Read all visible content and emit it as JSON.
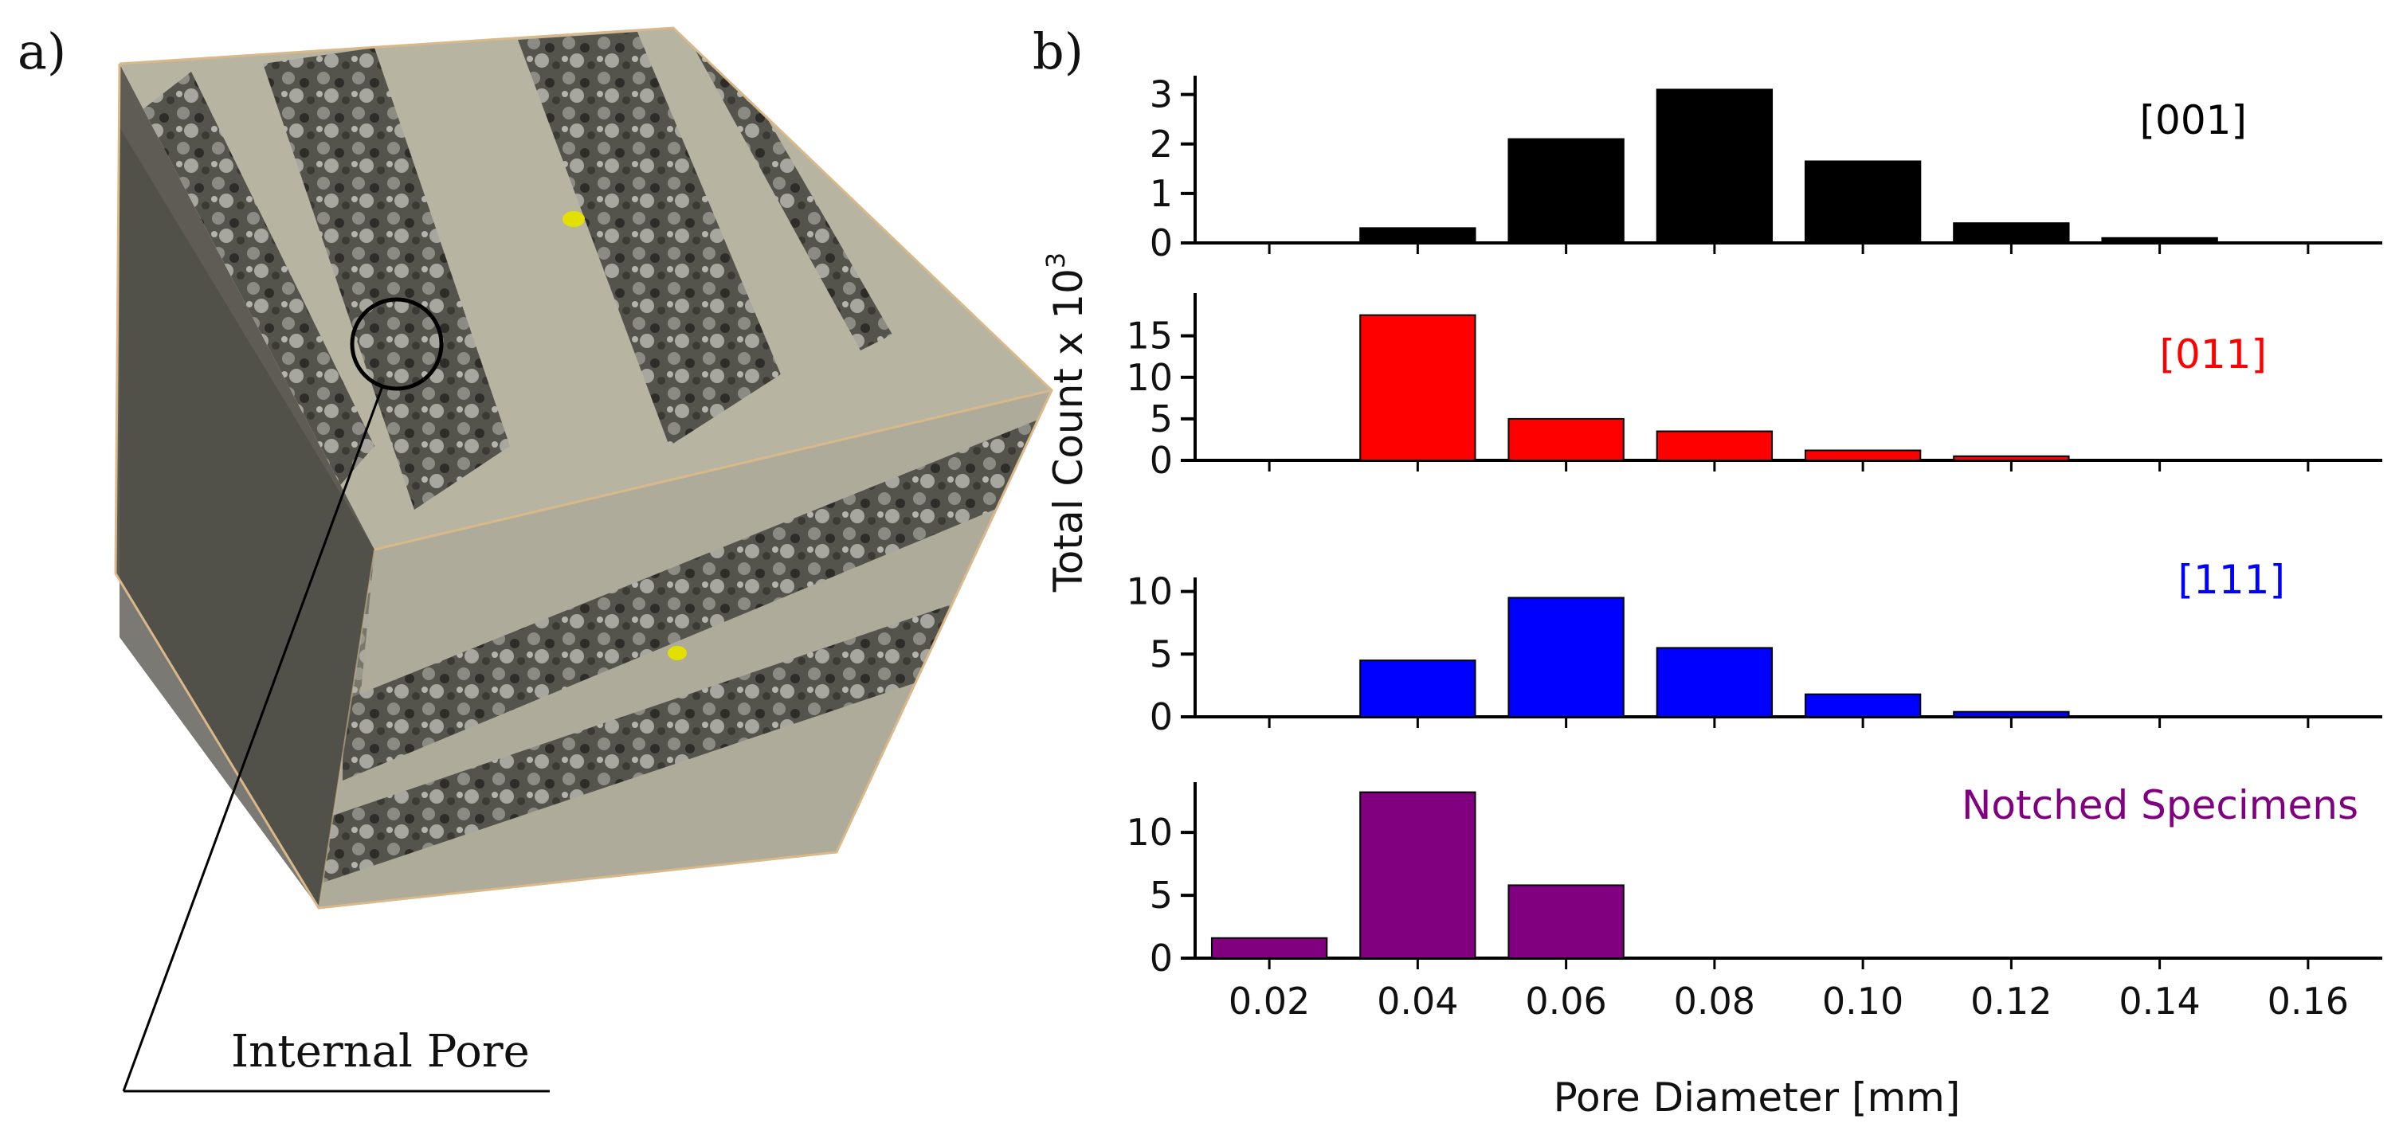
{
  "panels": {
    "a_label": "a)",
    "b_label": "b)"
  },
  "image_panel": {
    "annotation": "Internal Pore"
  },
  "chart_data": {
    "type": "bar",
    "title": "",
    "xlabel": "Pore Diameter [mm]",
    "ylabel": "Total Count x 10",
    "ylabel_superscript": "3",
    "xlim": [
      0.01,
      0.17
    ],
    "x_ticks": [
      "0.02",
      "0.04",
      "0.06",
      "0.08",
      "0.10",
      "0.12",
      "0.14",
      "0.16"
    ],
    "bar_width": 0.0155,
    "subplots": [
      {
        "name": "[001]",
        "color": "#000000",
        "ylim": [
          0,
          3.3
        ],
        "y_ticks": [
          0,
          1,
          2,
          3
        ],
        "x": [
          0.04,
          0.06,
          0.08,
          0.1,
          0.12,
          0.14
        ],
        "values": [
          0.3,
          2.1,
          3.1,
          1.65,
          0.4,
          0.1
        ]
      },
      {
        "name": "[011]",
        "color": "#ff0000",
        "ylim": [
          0,
          19
        ],
        "y_ticks": [
          0,
          5,
          10,
          15
        ],
        "x": [
          0.04,
          0.06,
          0.08,
          0.1,
          0.12
        ],
        "values": [
          17.5,
          5.0,
          3.5,
          1.2,
          0.5
        ]
      },
      {
        "name": "[111]",
        "color": "#0000ff",
        "ylim": [
          0,
          10.8
        ],
        "y_ticks": [
          0,
          5,
          10
        ],
        "x": [
          0.04,
          0.06,
          0.08,
          0.1,
          0.12
        ],
        "values": [
          4.5,
          9.5,
          5.5,
          1.8,
          0.4
        ]
      },
      {
        "name": "Notched Specimens",
        "color": "#800080",
        "ylim": [
          0,
          14
        ],
        "y_ticks": [
          0,
          5,
          10
        ],
        "x": [
          0.02,
          0.04,
          0.06
        ],
        "values": [
          1.6,
          13.2,
          5.8
        ]
      }
    ]
  }
}
